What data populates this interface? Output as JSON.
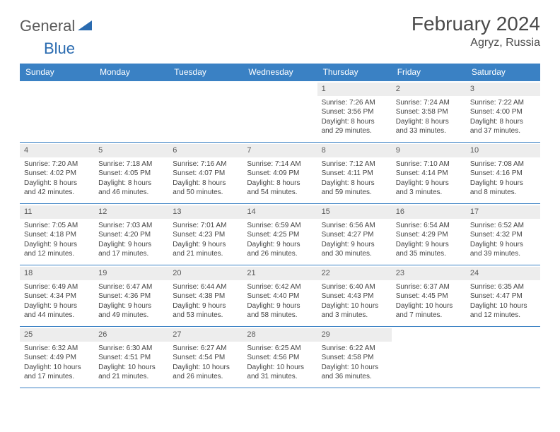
{
  "logo": {
    "text1": "General",
    "text2": "Blue"
  },
  "title": "February 2024",
  "location": "Agryz, Russia",
  "colors": {
    "header_bg": "#3a81c4",
    "header_text": "#ffffff",
    "date_bg": "#ededed",
    "border": "#3a81c4",
    "body_text": "#444444",
    "logo_gray": "#5a5a5a",
    "logo_blue": "#2a6bb0"
  },
  "day_names": [
    "Sunday",
    "Monday",
    "Tuesday",
    "Wednesday",
    "Thursday",
    "Friday",
    "Saturday"
  ],
  "weeks": [
    [
      {
        "empty": true
      },
      {
        "empty": true
      },
      {
        "empty": true
      },
      {
        "empty": true
      },
      {
        "date": "1",
        "sunrise": "Sunrise: 7:26 AM",
        "sunset": "Sunset: 3:56 PM",
        "daylight1": "Daylight: 8 hours",
        "daylight2": "and 29 minutes."
      },
      {
        "date": "2",
        "sunrise": "Sunrise: 7:24 AM",
        "sunset": "Sunset: 3:58 PM",
        "daylight1": "Daylight: 8 hours",
        "daylight2": "and 33 minutes."
      },
      {
        "date": "3",
        "sunrise": "Sunrise: 7:22 AM",
        "sunset": "Sunset: 4:00 PM",
        "daylight1": "Daylight: 8 hours",
        "daylight2": "and 37 minutes."
      }
    ],
    [
      {
        "date": "4",
        "sunrise": "Sunrise: 7:20 AM",
        "sunset": "Sunset: 4:02 PM",
        "daylight1": "Daylight: 8 hours",
        "daylight2": "and 42 minutes."
      },
      {
        "date": "5",
        "sunrise": "Sunrise: 7:18 AM",
        "sunset": "Sunset: 4:05 PM",
        "daylight1": "Daylight: 8 hours",
        "daylight2": "and 46 minutes."
      },
      {
        "date": "6",
        "sunrise": "Sunrise: 7:16 AM",
        "sunset": "Sunset: 4:07 PM",
        "daylight1": "Daylight: 8 hours",
        "daylight2": "and 50 minutes."
      },
      {
        "date": "7",
        "sunrise": "Sunrise: 7:14 AM",
        "sunset": "Sunset: 4:09 PM",
        "daylight1": "Daylight: 8 hours",
        "daylight2": "and 54 minutes."
      },
      {
        "date": "8",
        "sunrise": "Sunrise: 7:12 AM",
        "sunset": "Sunset: 4:11 PM",
        "daylight1": "Daylight: 8 hours",
        "daylight2": "and 59 minutes."
      },
      {
        "date": "9",
        "sunrise": "Sunrise: 7:10 AM",
        "sunset": "Sunset: 4:14 PM",
        "daylight1": "Daylight: 9 hours",
        "daylight2": "and 3 minutes."
      },
      {
        "date": "10",
        "sunrise": "Sunrise: 7:08 AM",
        "sunset": "Sunset: 4:16 PM",
        "daylight1": "Daylight: 9 hours",
        "daylight2": "and 8 minutes."
      }
    ],
    [
      {
        "date": "11",
        "sunrise": "Sunrise: 7:05 AM",
        "sunset": "Sunset: 4:18 PM",
        "daylight1": "Daylight: 9 hours",
        "daylight2": "and 12 minutes."
      },
      {
        "date": "12",
        "sunrise": "Sunrise: 7:03 AM",
        "sunset": "Sunset: 4:20 PM",
        "daylight1": "Daylight: 9 hours",
        "daylight2": "and 17 minutes."
      },
      {
        "date": "13",
        "sunrise": "Sunrise: 7:01 AM",
        "sunset": "Sunset: 4:23 PM",
        "daylight1": "Daylight: 9 hours",
        "daylight2": "and 21 minutes."
      },
      {
        "date": "14",
        "sunrise": "Sunrise: 6:59 AM",
        "sunset": "Sunset: 4:25 PM",
        "daylight1": "Daylight: 9 hours",
        "daylight2": "and 26 minutes."
      },
      {
        "date": "15",
        "sunrise": "Sunrise: 6:56 AM",
        "sunset": "Sunset: 4:27 PM",
        "daylight1": "Daylight: 9 hours",
        "daylight2": "and 30 minutes."
      },
      {
        "date": "16",
        "sunrise": "Sunrise: 6:54 AM",
        "sunset": "Sunset: 4:29 PM",
        "daylight1": "Daylight: 9 hours",
        "daylight2": "and 35 minutes."
      },
      {
        "date": "17",
        "sunrise": "Sunrise: 6:52 AM",
        "sunset": "Sunset: 4:32 PM",
        "daylight1": "Daylight: 9 hours",
        "daylight2": "and 39 minutes."
      }
    ],
    [
      {
        "date": "18",
        "sunrise": "Sunrise: 6:49 AM",
        "sunset": "Sunset: 4:34 PM",
        "daylight1": "Daylight: 9 hours",
        "daylight2": "and 44 minutes."
      },
      {
        "date": "19",
        "sunrise": "Sunrise: 6:47 AM",
        "sunset": "Sunset: 4:36 PM",
        "daylight1": "Daylight: 9 hours",
        "daylight2": "and 49 minutes."
      },
      {
        "date": "20",
        "sunrise": "Sunrise: 6:44 AM",
        "sunset": "Sunset: 4:38 PM",
        "daylight1": "Daylight: 9 hours",
        "daylight2": "and 53 minutes."
      },
      {
        "date": "21",
        "sunrise": "Sunrise: 6:42 AM",
        "sunset": "Sunset: 4:40 PM",
        "daylight1": "Daylight: 9 hours",
        "daylight2": "and 58 minutes."
      },
      {
        "date": "22",
        "sunrise": "Sunrise: 6:40 AM",
        "sunset": "Sunset: 4:43 PM",
        "daylight1": "Daylight: 10 hours",
        "daylight2": "and 3 minutes."
      },
      {
        "date": "23",
        "sunrise": "Sunrise: 6:37 AM",
        "sunset": "Sunset: 4:45 PM",
        "daylight1": "Daylight: 10 hours",
        "daylight2": "and 7 minutes."
      },
      {
        "date": "24",
        "sunrise": "Sunrise: 6:35 AM",
        "sunset": "Sunset: 4:47 PM",
        "daylight1": "Daylight: 10 hours",
        "daylight2": "and 12 minutes."
      }
    ],
    [
      {
        "date": "25",
        "sunrise": "Sunrise: 6:32 AM",
        "sunset": "Sunset: 4:49 PM",
        "daylight1": "Daylight: 10 hours",
        "daylight2": "and 17 minutes."
      },
      {
        "date": "26",
        "sunrise": "Sunrise: 6:30 AM",
        "sunset": "Sunset: 4:51 PM",
        "daylight1": "Daylight: 10 hours",
        "daylight2": "and 21 minutes."
      },
      {
        "date": "27",
        "sunrise": "Sunrise: 6:27 AM",
        "sunset": "Sunset: 4:54 PM",
        "daylight1": "Daylight: 10 hours",
        "daylight2": "and 26 minutes."
      },
      {
        "date": "28",
        "sunrise": "Sunrise: 6:25 AM",
        "sunset": "Sunset: 4:56 PM",
        "daylight1": "Daylight: 10 hours",
        "daylight2": "and 31 minutes."
      },
      {
        "date": "29",
        "sunrise": "Sunrise: 6:22 AM",
        "sunset": "Sunset: 4:58 PM",
        "daylight1": "Daylight: 10 hours",
        "daylight2": "and 36 minutes."
      },
      {
        "empty": true
      },
      {
        "empty": true
      }
    ]
  ]
}
